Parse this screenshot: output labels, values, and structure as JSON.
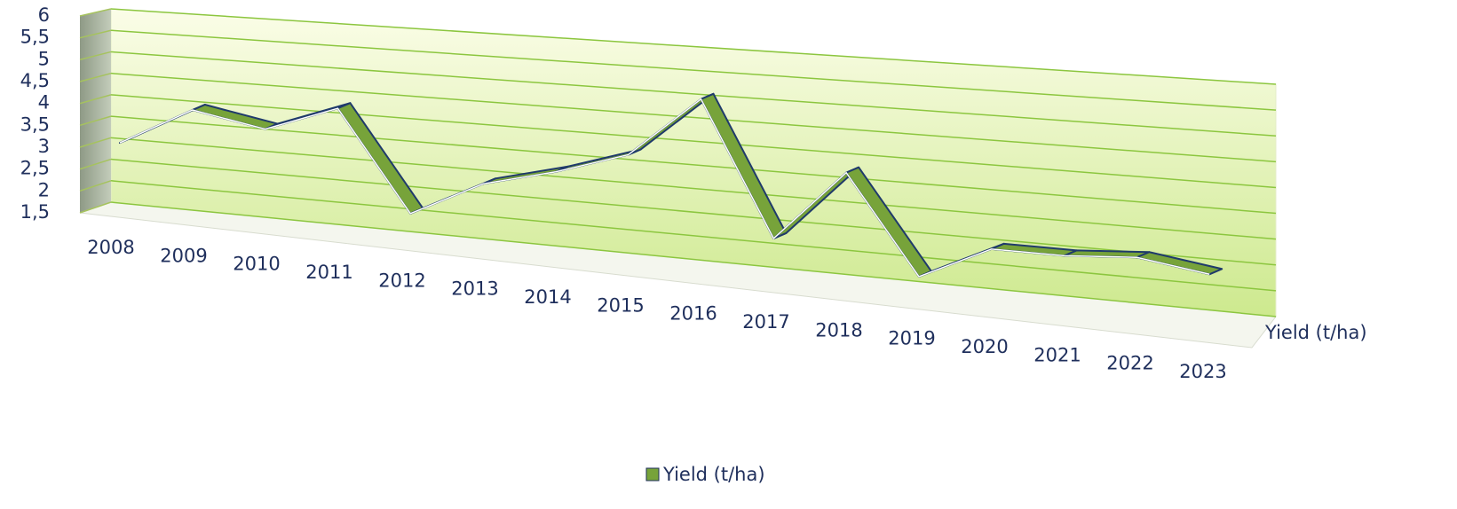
{
  "chart_data": {
    "type": "line",
    "categories": [
      "2008",
      "2009",
      "2010",
      "2011",
      "2012",
      "2013",
      "2014",
      "2015",
      "2016",
      "2017",
      "2018",
      "2019",
      "2020",
      "2021",
      "2022",
      "2023"
    ],
    "series": [
      {
        "name": "Yield (t/ha)",
        "color": "#77a33a",
        "values": [
          2.9,
          3.8,
          3.5,
          4.1,
          1.9,
          2.7,
          3.1,
          3.6,
          4.9,
          2.1,
          3.6,
          1.6,
          2.3,
          2.3,
          2.4,
          2.2
        ]
      }
    ],
    "ylim": [
      1.5,
      6
    ],
    "yticks": [
      {
        "value": 1.5,
        "label": "1,5"
      },
      2,
      {
        "value": 2.5,
        "label": "2,5"
      },
      3,
      {
        "value": 3.5,
        "label": "3,5"
      },
      4,
      {
        "value": 4.5,
        "label": "4,5"
      },
      5,
      {
        "value": 5.5,
        "label": "5,5"
      },
      6
    ],
    "grid": true
  }
}
